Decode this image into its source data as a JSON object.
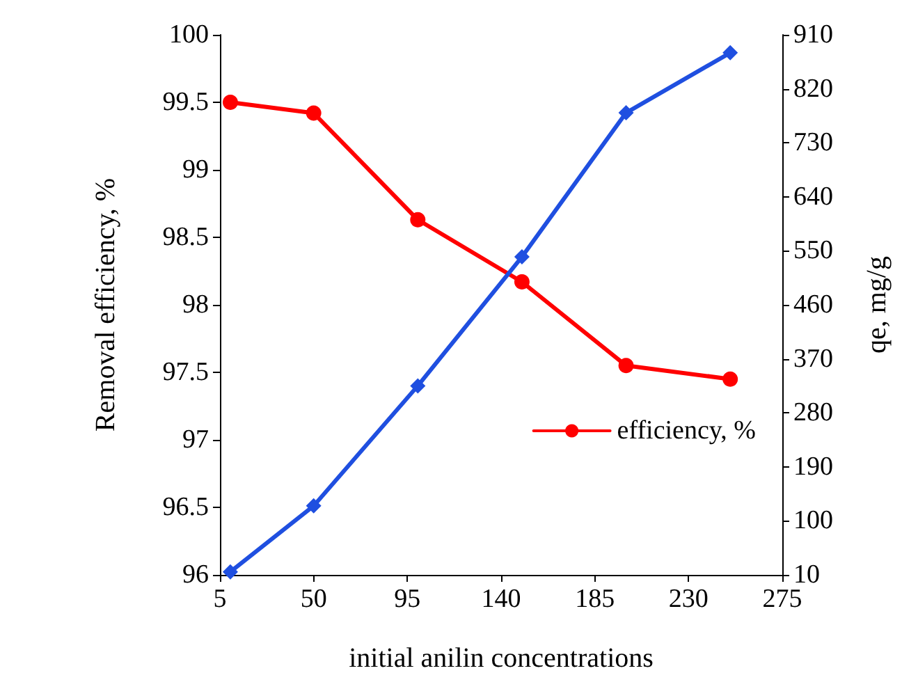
{
  "chart_data": {
    "type": "line",
    "xlabel": "initial anilin concentrations",
    "ylabel": "Removal efficiency, %",
    "y2label": "qe, mg/g",
    "x": [
      10,
      50,
      100,
      150,
      200,
      250
    ],
    "series": [
      {
        "name": "efficiency, %",
        "color": "#ff0000",
        "marker": "circle",
        "values": [
          99.5,
          99.42,
          98.63,
          98.17,
          97.55,
          97.45
        ]
      },
      {
        "color": "#1f4fe0",
        "marker": "diamond",
        "axis": "y2",
        "values": [
          15,
          125,
          325,
          540,
          780,
          880
        ]
      }
    ],
    "xlim": [
      5,
      275
    ],
    "xticks": [
      5,
      50,
      95,
      140,
      185,
      230,
      275
    ],
    "ylim": [
      96,
      100
    ],
    "yticks": [
      96,
      96.5,
      97,
      97.5,
      98,
      98.5,
      99,
      99.5,
      100
    ],
    "y2lim": [
      10,
      910
    ],
    "y2ticks": [
      10,
      100,
      190,
      280,
      370,
      460,
      550,
      640,
      730,
      820,
      910
    ],
    "grid": false,
    "legend": "right"
  }
}
